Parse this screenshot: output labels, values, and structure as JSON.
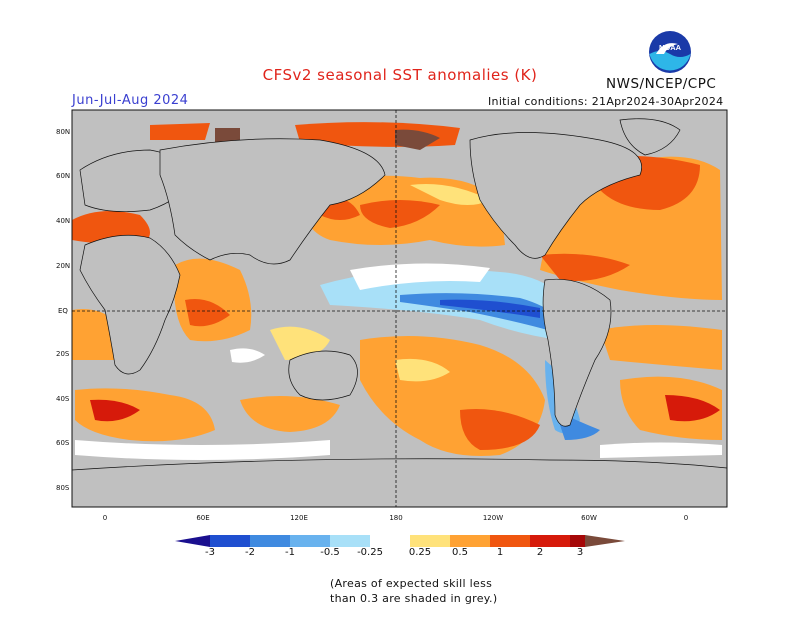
{
  "title": "CFSv2 seasonal SST anomalies (K)",
  "season": "Jun-Jul-Aug 2024",
  "initial_conditions": "Initial conditions: 21Apr2024-30Apr2024",
  "agency": "NWS/NCEP/CPC",
  "logo_text": "NOAA",
  "lat_labels": [
    "80N",
    "60N",
    "40N",
    "20N",
    "EQ",
    "20S",
    "40S",
    "60S",
    "80S"
  ],
  "lon_labels": [
    "0",
    "60E",
    "120E",
    "180",
    "120W",
    "60W",
    "0"
  ],
  "colorbar": {
    "ticks": [
      "-3",
      "-2",
      "-1",
      "-0.5",
      "-0.25",
      "0.25",
      "0.5",
      "1",
      "2",
      "3"
    ],
    "colors": [
      "#1a0f8f",
      "#1f4fd0",
      "#3f8ae0",
      "#68b2ee",
      "#a8e0f8",
      "#ffffff",
      "#ffe27a",
      "#ffa233",
      "#f0560f",
      "#d61a0a",
      "#a60808",
      "#7a4a3a"
    ]
  },
  "note": {
    "line1": "(Areas of expected skill less",
    "line2": "than 0.3 are shaded in grey.)"
  },
  "colors": {
    "land": "#ffffff",
    "low_skill": "#c0c0c0",
    "title": "#e0241b",
    "season": "#3a3fd0"
  }
}
